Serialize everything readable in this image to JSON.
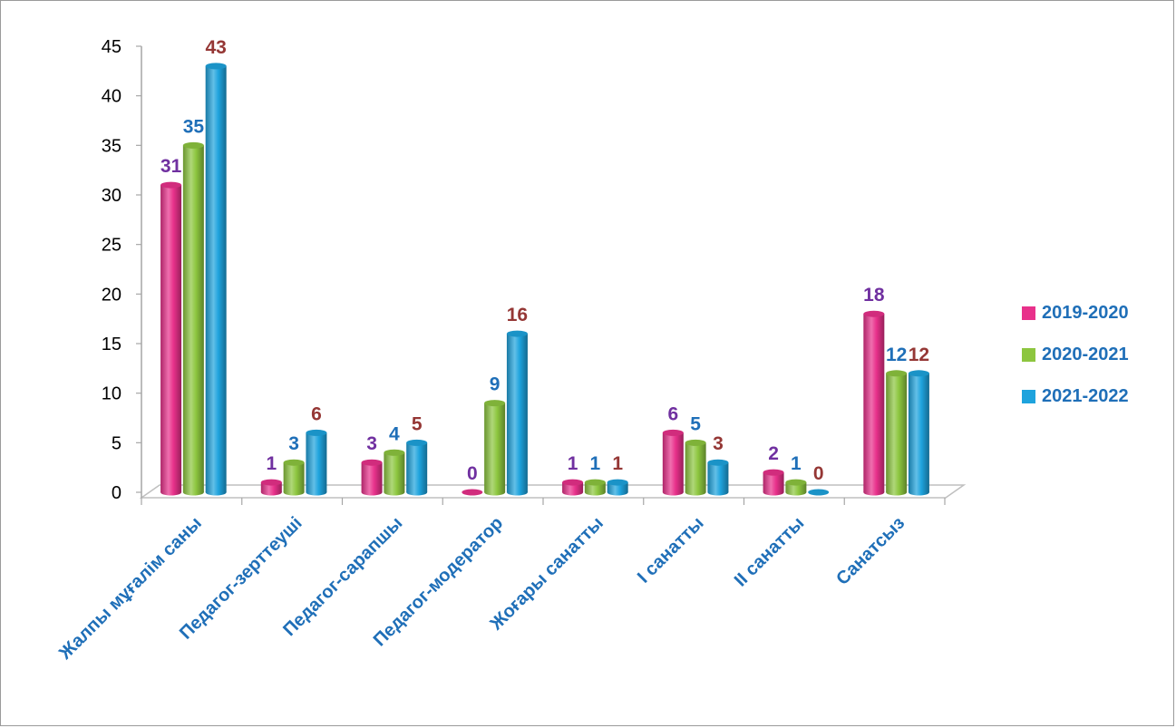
{
  "chart_data": {
    "type": "bar",
    "categories": [
      "Жалпы мұғалім саны",
      "Педагог-зерттеуші",
      "Педагог-сарапшы",
      "Педагог-модератор",
      "Жоғары санатты",
      "I санатты",
      "II санатты",
      "Санатсыз"
    ],
    "series": [
      {
        "name": "2019-2020",
        "values": [
          31,
          1,
          3,
          0,
          1,
          6,
          2,
          18
        ],
        "color": "#e8318b",
        "label_color": "#7030a0"
      },
      {
        "name": "2020-2021",
        "values": [
          35,
          3,
          4,
          9,
          1,
          5,
          1,
          12
        ],
        "color": "#8dc63f",
        "label_color": "#1f6fb8"
      },
      {
        "name": "2021-2022",
        "values": [
          43,
          6,
          5,
          16,
          1,
          3,
          0,
          12
        ],
        "color": "#1ea3dd",
        "label_color": "#953735"
      }
    ],
    "ylim": [
      0,
      45
    ],
    "yticks": [
      "0",
      "5",
      "10",
      "15",
      "20",
      "25",
      "30",
      "35",
      "40",
      "45"
    ],
    "grid": false,
    "legend_position": "right",
    "category_label_color": "#1f6fb8"
  }
}
